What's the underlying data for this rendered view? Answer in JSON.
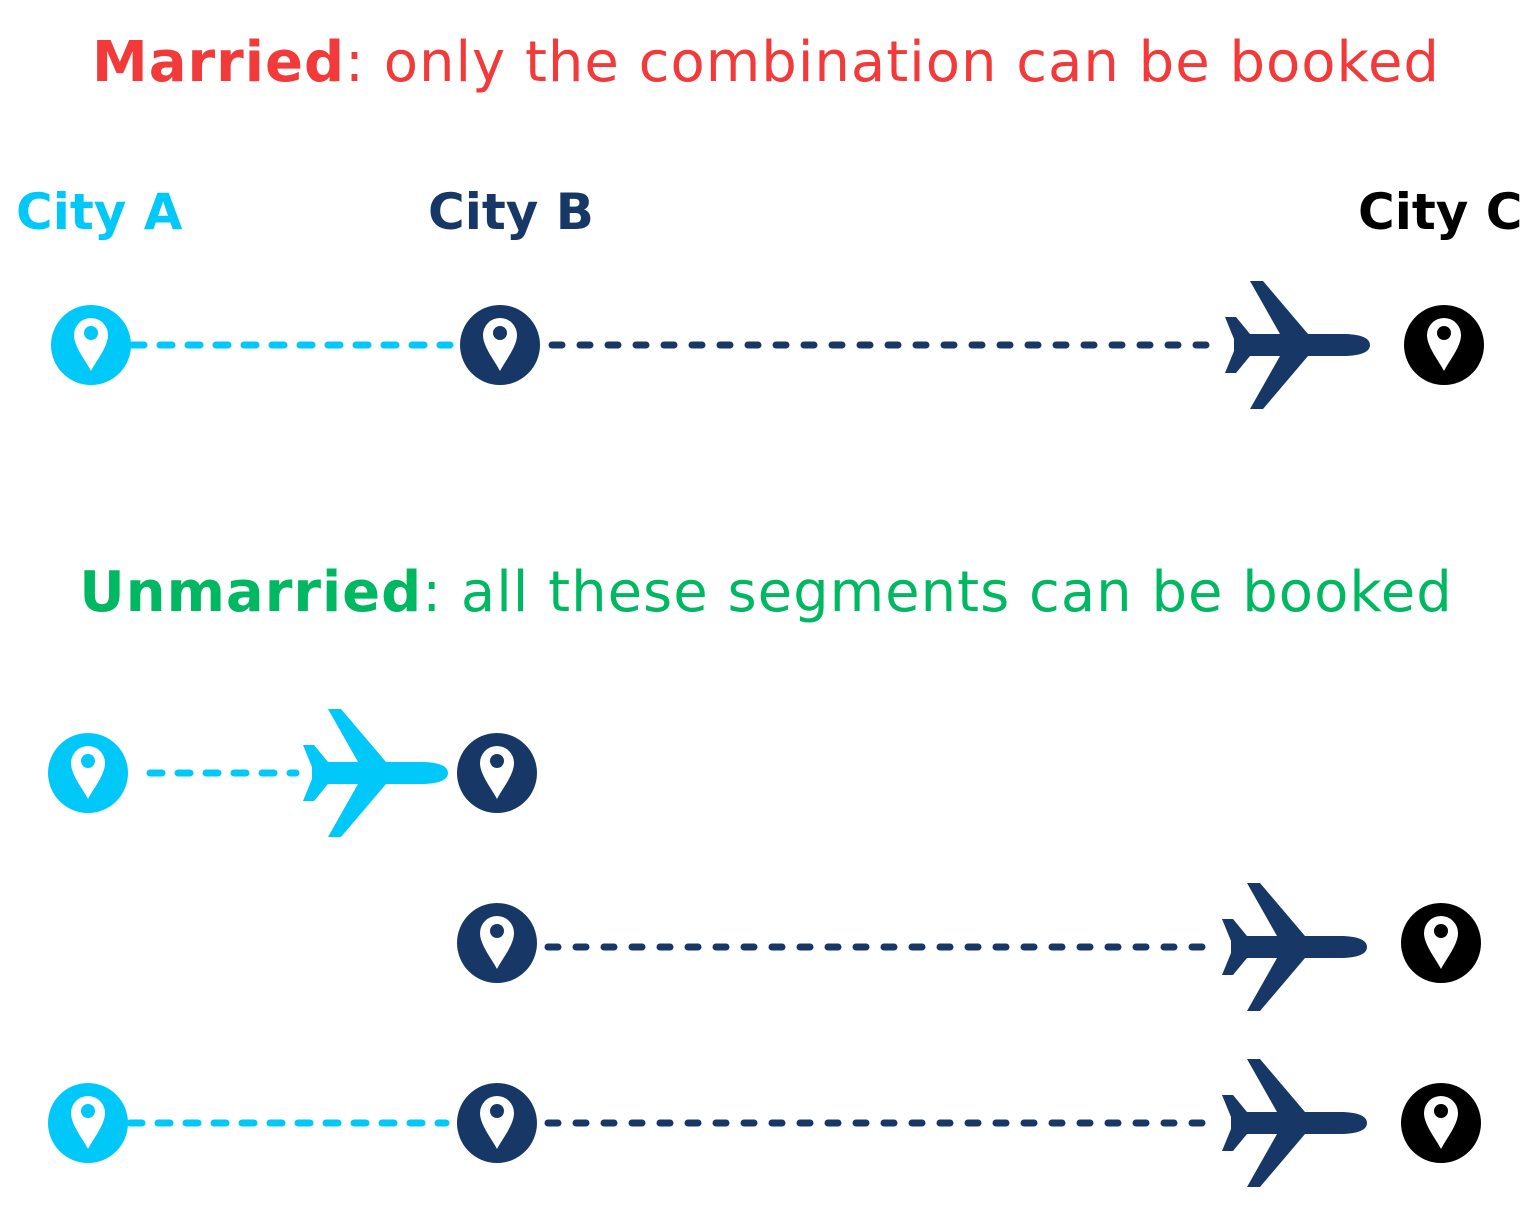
{
  "colors": {
    "married": "#f23a3a",
    "unmarried": "#00b861",
    "city_a": "#00c8f8",
    "city_b": "#173867",
    "city_c": "#000000"
  },
  "married": {
    "keyword": "Married",
    "description": ": only the combination can be booked"
  },
  "unmarried": {
    "keyword": "Unmarried",
    "description": ": all these segments can be booked"
  },
  "cities": {
    "a": "City A",
    "b": "City B",
    "c": "City C"
  },
  "icons": {
    "stop": "map-pin-icon",
    "flight": "airplane-icon"
  }
}
